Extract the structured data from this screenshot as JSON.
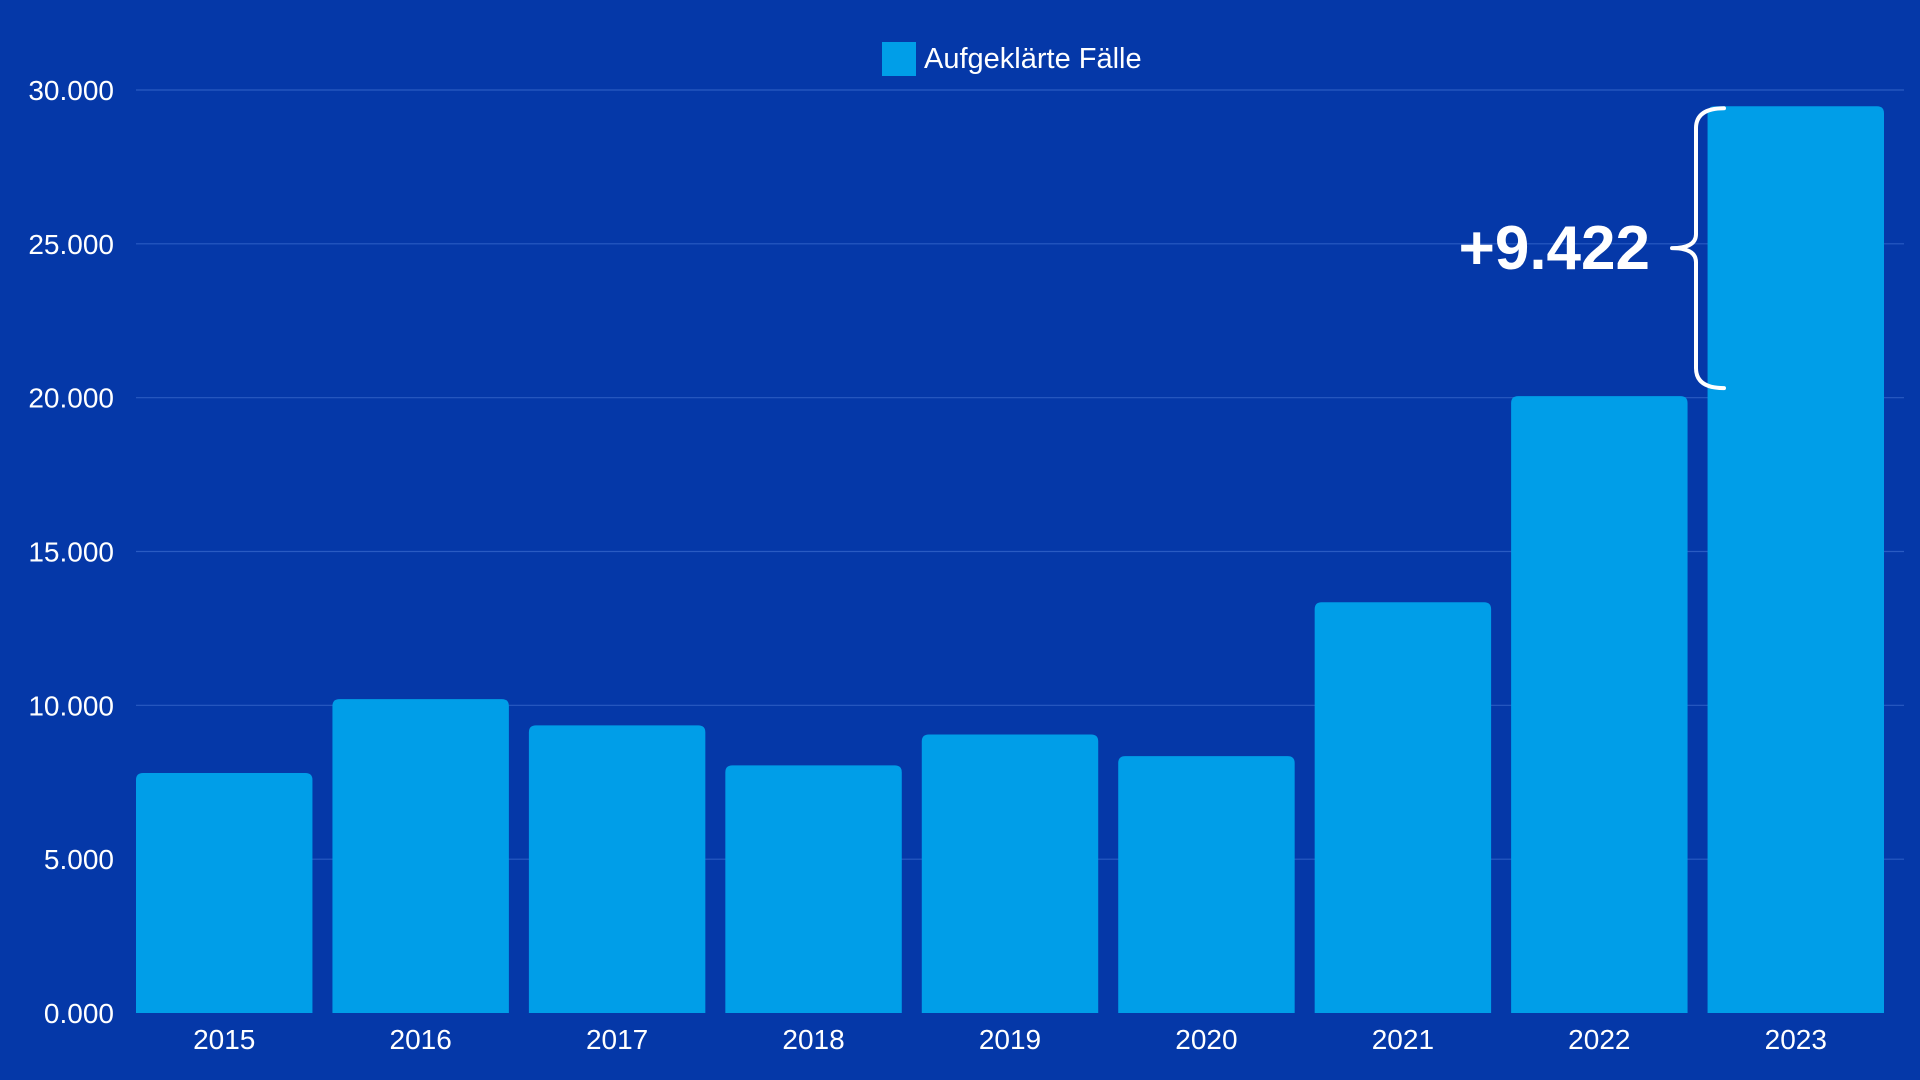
{
  "chart_data": {
    "type": "bar",
    "categories": [
      "2015",
      "2016",
      "2017",
      "2018",
      "2019",
      "2020",
      "2021",
      "2022",
      "2023"
    ],
    "series": [
      {
        "name": "Aufgeklärte Fälle",
        "values": [
          7800,
          10200,
          9350,
          8050,
          9050,
          8350,
          13350,
          20050,
          29472
        ]
      }
    ],
    "ylim": [
      0,
      30000
    ],
    "yticks": [
      0,
      5000,
      10000,
      15000,
      20000,
      25000,
      30000
    ],
    "ytick_labels": [
      "0.000",
      "5.000",
      "10.000",
      "15.000",
      "20.000",
      "25.000",
      "30.000"
    ],
    "grid": true,
    "legend": "top-center",
    "annotation": {
      "text": "+9.422",
      "from_category": "2022",
      "to_category": "2023"
    },
    "colors": {
      "background": "#0538A8",
      "bar": "#009EE8",
      "grid": "#2A5BC2",
      "text": "#FFFFFF"
    }
  }
}
